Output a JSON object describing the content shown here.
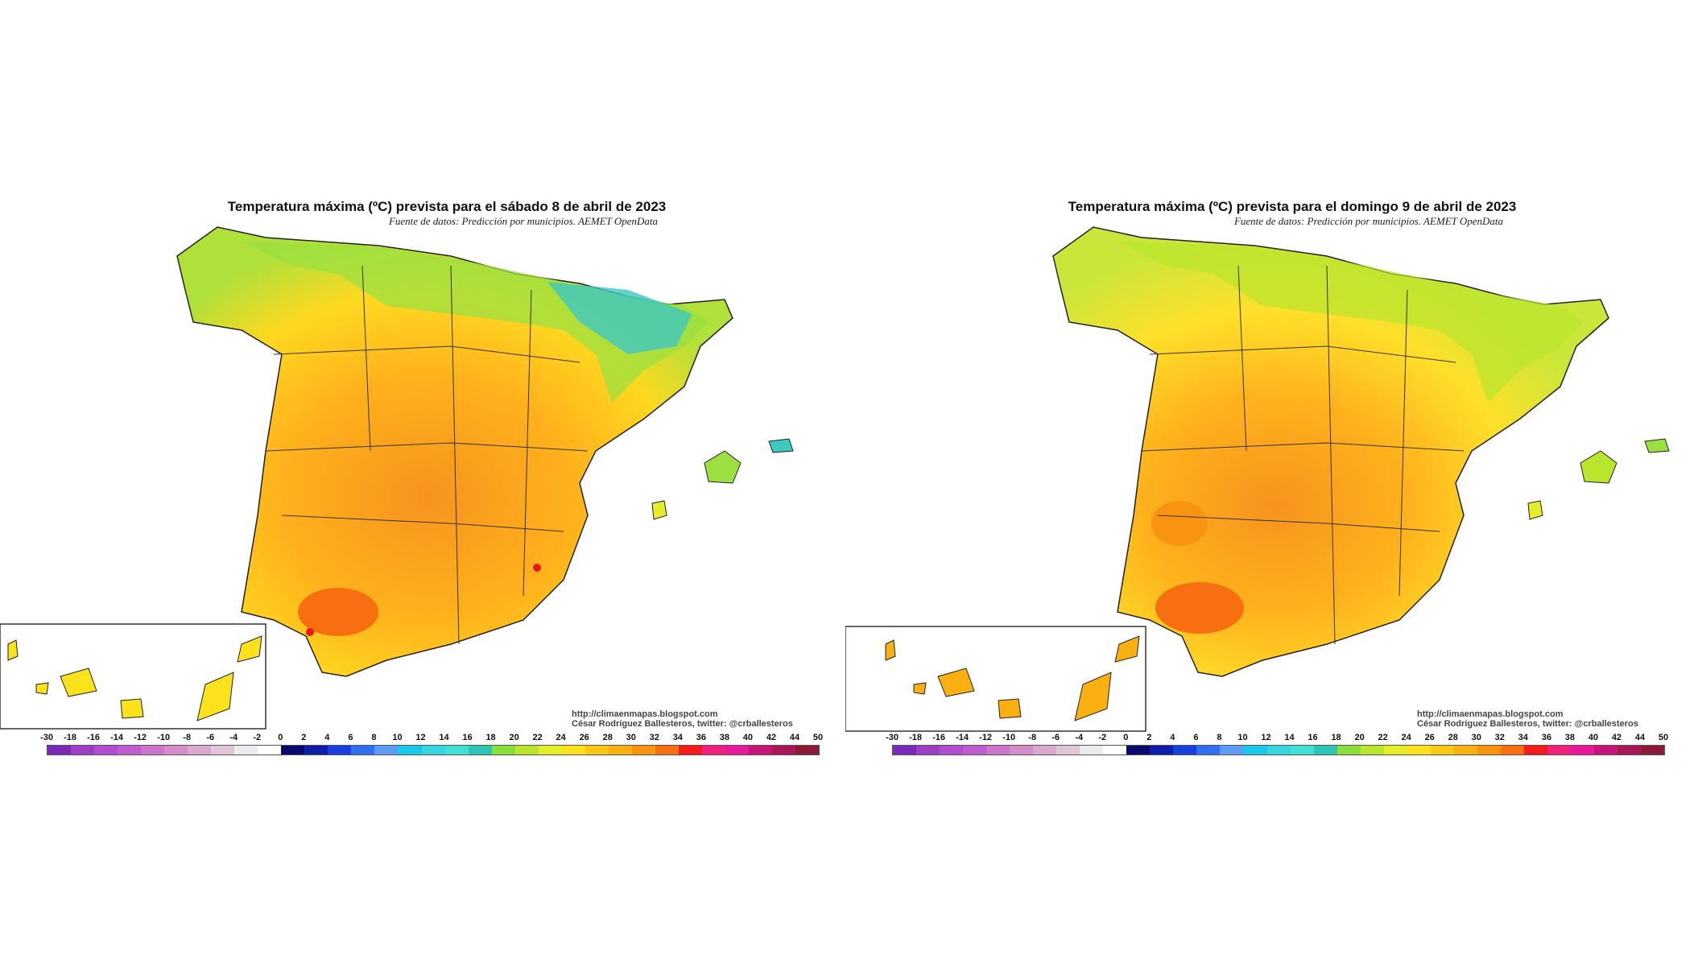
{
  "maps": [
    {
      "title": "Temperatura máxima (ºC) prevista para el sábado 8 de abril de 2023",
      "source": "Fuente de datos: Predicción por municipios. AEMET OpenData",
      "credit_url": "http://climaenmapas.blogspot.com",
      "credit_author": "César Rodríguez Ballesteros, twitter: @crballesteros"
    },
    {
      "title": "Temperatura máxima (ºC) prevista para el domingo 9 de abril de 2023",
      "source": "Fuente de datos: Predicción por municipios. AEMET OpenData",
      "credit_url": "http://climaenmapas.blogspot.com",
      "credit_author": "César Rodríguez Ballesteros, twitter: @crballesteros"
    }
  ],
  "scale": {
    "labels": [
      "-30",
      "-18",
      "-16",
      "-14",
      "-12",
      "-10",
      "-8",
      "-6",
      "-4",
      "-2",
      "0",
      "2",
      "4",
      "6",
      "8",
      "10",
      "12",
      "14",
      "16",
      "18",
      "20",
      "22",
      "24",
      "26",
      "28",
      "30",
      "32",
      "34",
      "36",
      "38",
      "40",
      "42",
      "44",
      "50"
    ],
    "colors": [
      "#7a2ab8",
      "#9b3fc6",
      "#b04dd0",
      "#c05ccf",
      "#cc74cc",
      "#d38ec9",
      "#d8a8cf",
      "#e0c4d8",
      "#ececf0",
      "#ffffff",
      "#0a0a6e",
      "#0e1ea8",
      "#1a3fe0",
      "#2f6ff0",
      "#5f9af5",
      "#19c9e8",
      "#35d6e0",
      "#3fe0d6",
      "#2ec5b5",
      "#8bde3a",
      "#b9e62c",
      "#e6ee2a",
      "#fbe21c",
      "#fcc816",
      "#fbb012",
      "#f99410",
      "#f86f12",
      "#f31b1b",
      "#f0207e",
      "#e8189c",
      "#c81478",
      "#a81858",
      "#8a1a38"
    ]
  },
  "colors": {
    "hot": "#f7931e",
    "warm": "#ffc820",
    "mild": "#ffe62a",
    "cool": "#9be040",
    "cold": "#3ec8c0",
    "extreme": "#e81818"
  }
}
